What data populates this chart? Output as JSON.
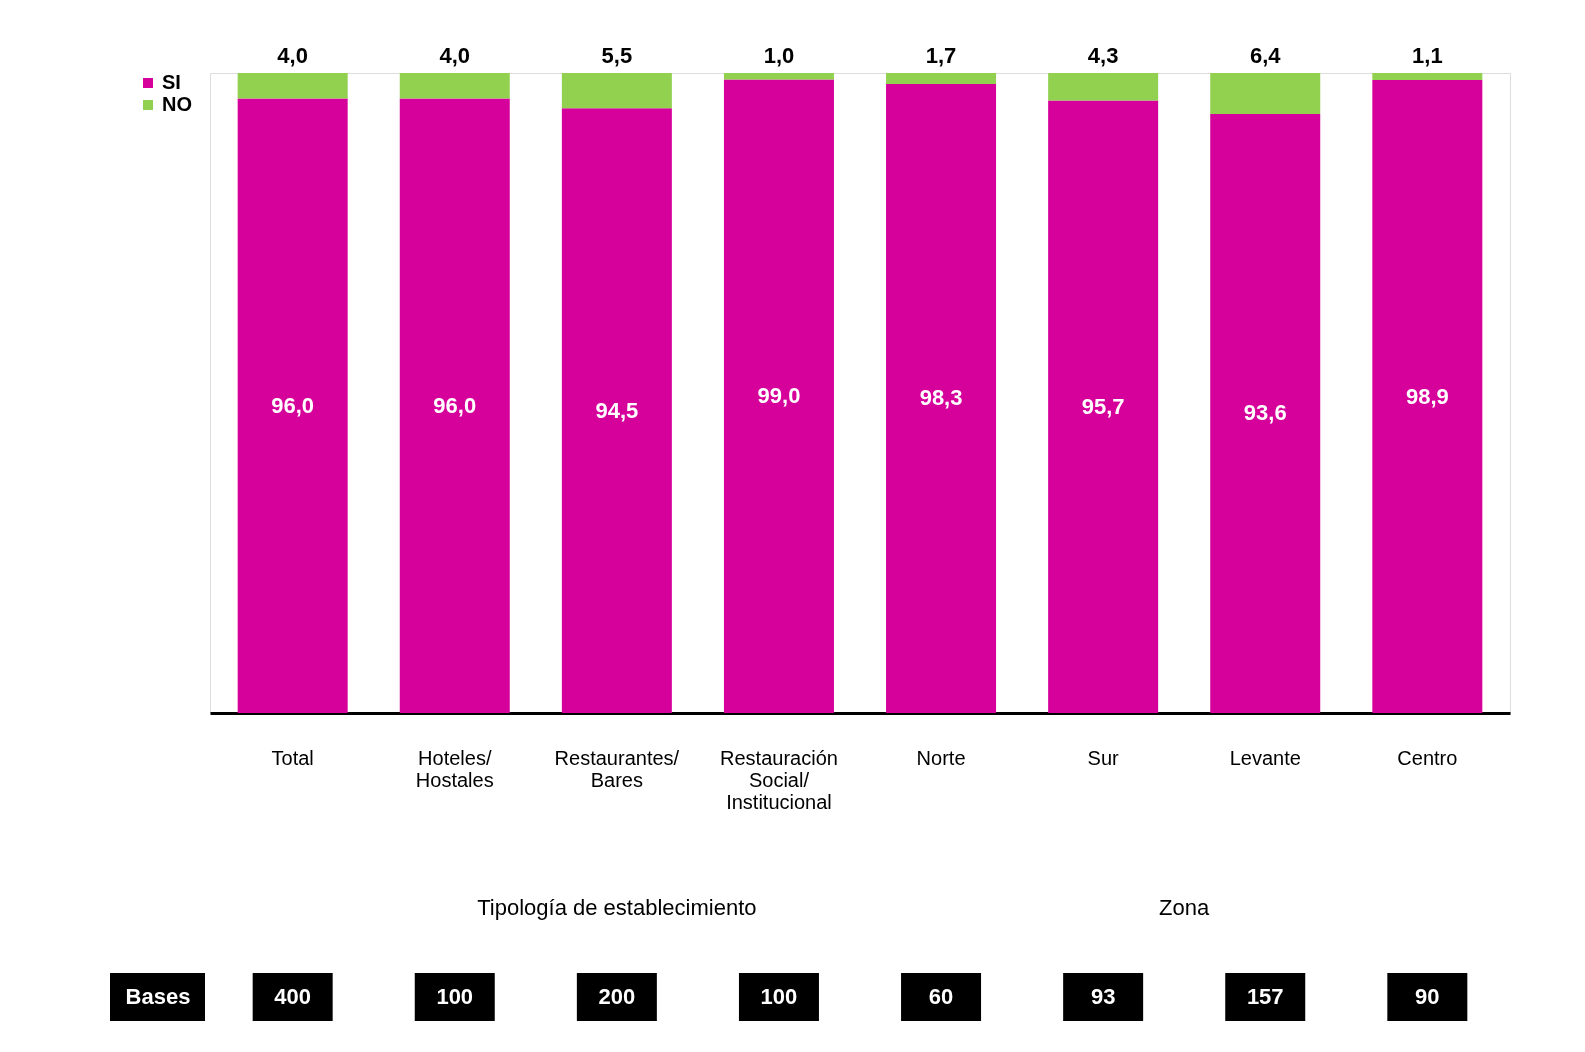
{
  "chart_data": {
    "type": "bar",
    "stacked": true,
    "legend": "left",
    "tick_labels": "x",
    "grid": false,
    "categories": [
      "Total",
      "Hoteles/ Hostales",
      "Restaurantes/ Bares",
      "Restauración Social/ Institucional",
      "Norte",
      "Sur",
      "Levante",
      "Centro"
    ],
    "series": [
      {
        "name": "SI",
        "color": "#d6009a",
        "values": [
          96.0,
          96.0,
          94.5,
          99.0,
          98.3,
          95.7,
          93.6,
          98.9
        ],
        "value_labels": [
          "96,0",
          "96,0",
          "94,5",
          "99,0",
          "98,3",
          "95,7",
          "93,6",
          "98,9"
        ]
      },
      {
        "name": "NO",
        "color": "#92d050",
        "values": [
          4.0,
          4.0,
          5.5,
          1.0,
          1.7,
          4.3,
          6.4,
          1.1
        ],
        "value_labels": [
          "4,0",
          "4,0",
          "5,5",
          "1,0",
          "1,7",
          "4,3",
          "6,4",
          "1,1"
        ]
      }
    ],
    "annotations": [
      "Tipología de establecimiento",
      "Zona",
      "Bases",
      "400",
      "100",
      "200",
      "100",
      "60",
      "93",
      "157",
      "90"
    ]
  }
}
